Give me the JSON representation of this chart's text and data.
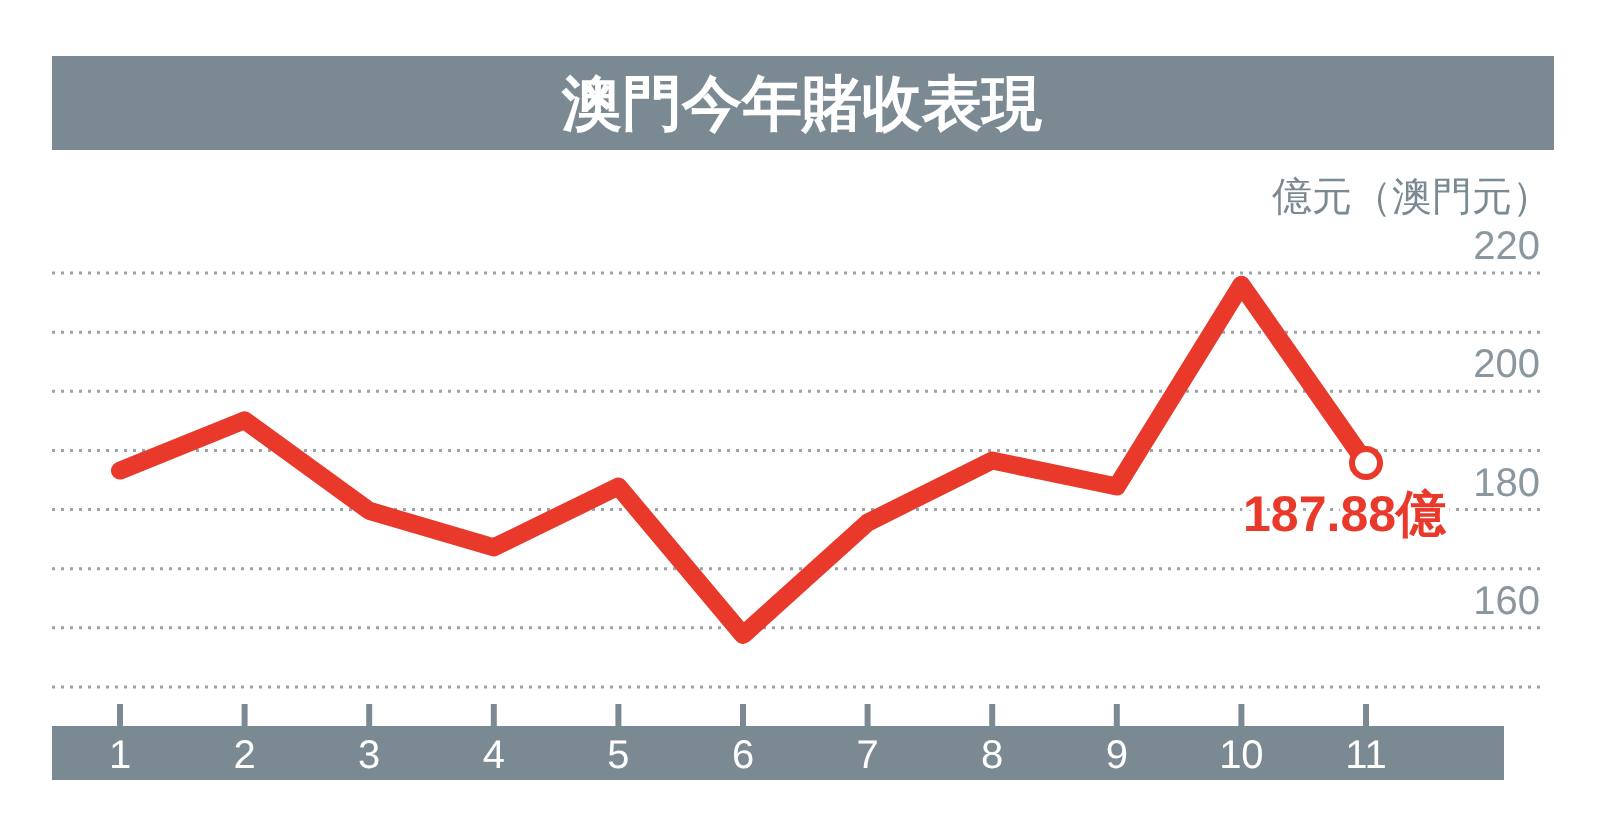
{
  "chart_data": {
    "type": "line",
    "title": "澳門今年賭收表現",
    "ylabel": "億元（澳門元）",
    "categories": [
      "1",
      "2",
      "3",
      "4",
      "5",
      "6",
      "7",
      "8",
      "9",
      "10",
      "11"
    ],
    "series": [
      {
        "color": "#e8392a",
        "values": [
          186.6,
          195.1,
          179.8,
          173.6,
          183.9,
          158.8,
          177.8,
          188.3,
          183.9,
          218,
          187.88
        ]
      }
    ],
    "ylim": [
      150,
      220
    ],
    "yticks": [
      {
        "value": 150,
        "label": null
      },
      160,
      {
        "value": 170,
        "label": null
      },
      180,
      {
        "value": 190,
        "label": null
      },
      200,
      {
        "value": 210,
        "label": null
      },
      220
    ],
    "grid": "y",
    "marker": "none",
    "line_style": "solid",
    "annotations": [
      {
        "text": "187.88億",
        "x": "11",
        "y": 187.88
      }
    ]
  }
}
